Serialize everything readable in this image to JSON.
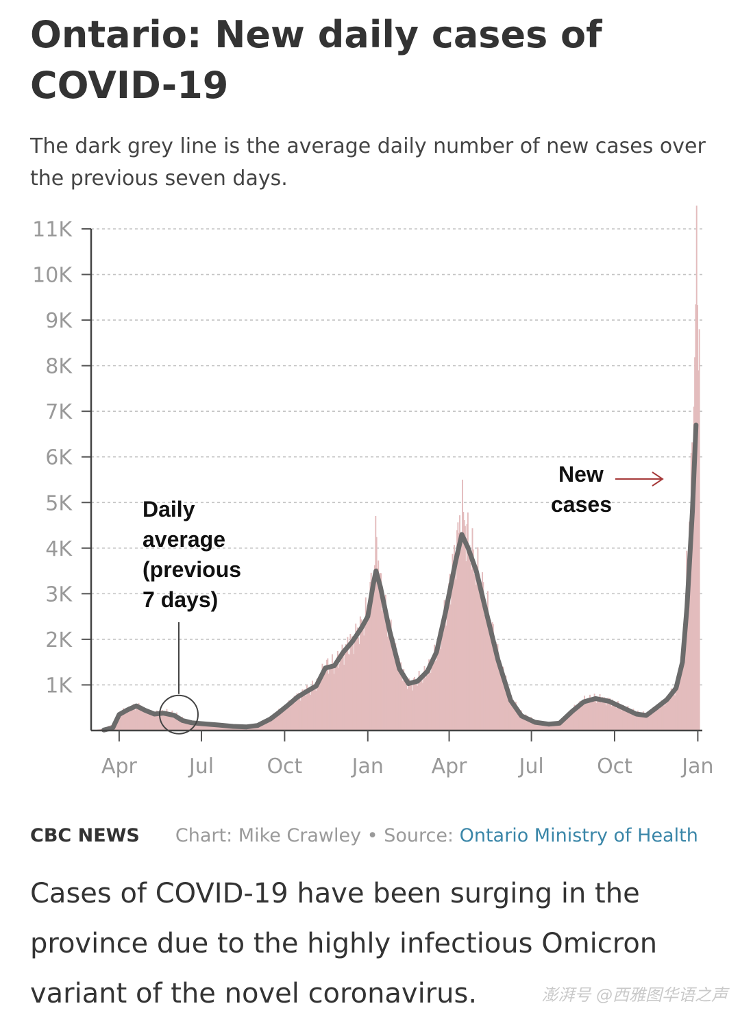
{
  "header": {
    "title": "Ontario: New daily cases of COVID-19",
    "subtitle": "The dark grey line is the average daily number of new cases over the previous seven days."
  },
  "chart_data": {
    "type": "bar",
    "overlay": "line",
    "title": "Ontario: New daily cases of COVID-19",
    "subtitle": "The dark grey line is the average daily number of new cases over the previous seven days.",
    "ylim": [
      0,
      11000
    ],
    "y_ticks": [
      1000,
      2000,
      3000,
      4000,
      5000,
      6000,
      7000,
      8000,
      9000,
      10000,
      11000
    ],
    "y_tick_labels": [
      "1K",
      "2K",
      "3K",
      "4K",
      "5K",
      "6K",
      "7K",
      "8K",
      "9K",
      "10K",
      "11K"
    ],
    "x_range": [
      "2020-03-01",
      "2022-01-06"
    ],
    "x_ticks": [
      "2020-04-01",
      "2020-07-01",
      "2020-10-01",
      "2021-01-01",
      "2021-04-01",
      "2021-07-01",
      "2021-10-01",
      "2022-01-01"
    ],
    "x_tick_labels": [
      "Apr",
      "Jul",
      "Oct",
      "Jan",
      "Apr",
      "Jul",
      "Oct",
      "Jan"
    ],
    "grid": true,
    "series": [
      {
        "name": "New cases",
        "kind": "bar",
        "color": "#e3bcbd",
        "points": [
          [
            "2020-03-01",
            0
          ],
          [
            "2020-03-15",
            40
          ],
          [
            "2020-03-25",
            150
          ],
          [
            "2020-04-03",
            400
          ],
          [
            "2020-04-12",
            470
          ],
          [
            "2020-04-20",
            560
          ],
          [
            "2020-04-30",
            440
          ],
          [
            "2020-05-10",
            370
          ],
          [
            "2020-05-20",
            410
          ],
          [
            "2020-06-01",
            370
          ],
          [
            "2020-06-10",
            250
          ],
          [
            "2020-06-20",
            190
          ],
          [
            "2020-07-01",
            160
          ],
          [
            "2020-07-20",
            130
          ],
          [
            "2020-08-05",
            110
          ],
          [
            "2020-08-20",
            100
          ],
          [
            "2020-09-01",
            120
          ],
          [
            "2020-09-15",
            260
          ],
          [
            "2020-09-25",
            420
          ],
          [
            "2020-10-05",
            580
          ],
          [
            "2020-10-15",
            760
          ],
          [
            "2020-10-25",
            880
          ],
          [
            "2020-11-05",
            1000
          ],
          [
            "2020-11-15",
            1400
          ],
          [
            "2020-11-25",
            1450
          ],
          [
            "2020-12-05",
            1750
          ],
          [
            "2020-12-15",
            2000
          ],
          [
            "2020-12-25",
            2300
          ],
          [
            "2020-12-31",
            2600
          ],
          [
            "2021-01-05",
            3200
          ],
          [
            "2021-01-10",
            4200
          ],
          [
            "2021-01-15",
            3000
          ],
          [
            "2021-01-25",
            2200
          ],
          [
            "2021-02-05",
            1400
          ],
          [
            "2021-02-15",
            1000
          ],
          [
            "2021-02-25",
            1100
          ],
          [
            "2021-03-08",
            1300
          ],
          [
            "2021-03-18",
            1750
          ],
          [
            "2021-03-28",
            2700
          ],
          [
            "2021-04-08",
            4000
          ],
          [
            "2021-04-15",
            4800
          ],
          [
            "2021-04-22",
            4100
          ],
          [
            "2021-05-01",
            3500
          ],
          [
            "2021-05-12",
            2700
          ],
          [
            "2021-05-25",
            1600
          ],
          [
            "2021-06-08",
            700
          ],
          [
            "2021-06-20",
            350
          ],
          [
            "2021-07-05",
            200
          ],
          [
            "2021-07-20",
            150
          ],
          [
            "2021-08-01",
            170
          ],
          [
            "2021-08-15",
            450
          ],
          [
            "2021-08-28",
            650
          ],
          [
            "2021-09-10",
            720
          ],
          [
            "2021-09-25",
            650
          ],
          [
            "2021-10-10",
            500
          ],
          [
            "2021-10-25",
            380
          ],
          [
            "2021-11-05",
            350
          ],
          [
            "2021-11-15",
            500
          ],
          [
            "2021-11-28",
            700
          ],
          [
            "2021-12-08",
            950
          ],
          [
            "2021-12-15",
            1600
          ],
          [
            "2021-12-20",
            3800
          ],
          [
            "2021-12-26",
            6200
          ],
          [
            "2021-12-30",
            10400
          ],
          [
            "2022-01-02",
            8500
          ]
        ]
      },
      {
        "name": "Daily average (previous 7 days)",
        "kind": "line",
        "color": "#6b6b6b",
        "points": [
          [
            "2020-03-15",
            10
          ],
          [
            "2020-03-25",
            60
          ],
          [
            "2020-04-01",
            350
          ],
          [
            "2020-04-10",
            450
          ],
          [
            "2020-04-20",
            540
          ],
          [
            "2020-04-30",
            440
          ],
          [
            "2020-05-10",
            360
          ],
          [
            "2020-05-20",
            380
          ],
          [
            "2020-06-01",
            330
          ],
          [
            "2020-06-10",
            220
          ],
          [
            "2020-06-20",
            170
          ],
          [
            "2020-07-01",
            150
          ],
          [
            "2020-07-20",
            120
          ],
          [
            "2020-08-05",
            90
          ],
          [
            "2020-08-20",
            80
          ],
          [
            "2020-09-01",
            110
          ],
          [
            "2020-09-15",
            250
          ],
          [
            "2020-09-25",
            400
          ],
          [
            "2020-10-05",
            560
          ],
          [
            "2020-10-15",
            730
          ],
          [
            "2020-10-25",
            850
          ],
          [
            "2020-11-05",
            980
          ],
          [
            "2020-11-15",
            1370
          ],
          [
            "2020-11-25",
            1420
          ],
          [
            "2020-12-05",
            1720
          ],
          [
            "2020-12-15",
            1950
          ],
          [
            "2020-12-25",
            2250
          ],
          [
            "2021-01-01",
            2500
          ],
          [
            "2021-01-07",
            3200
          ],
          [
            "2021-01-10",
            3500
          ],
          [
            "2021-01-15",
            3150
          ],
          [
            "2021-01-25",
            2200
          ],
          [
            "2021-02-05",
            1350
          ],
          [
            "2021-02-15",
            1030
          ],
          [
            "2021-02-25",
            1080
          ],
          [
            "2021-03-08",
            1300
          ],
          [
            "2021-03-18",
            1720
          ],
          [
            "2021-03-28",
            2600
          ],
          [
            "2021-04-08",
            3700
          ],
          [
            "2021-04-15",
            4300
          ],
          [
            "2021-04-22",
            4000
          ],
          [
            "2021-05-01",
            3500
          ],
          [
            "2021-05-12",
            2600
          ],
          [
            "2021-05-25",
            1550
          ],
          [
            "2021-06-08",
            660
          ],
          [
            "2021-06-20",
            320
          ],
          [
            "2021-07-05",
            180
          ],
          [
            "2021-07-20",
            140
          ],
          [
            "2021-08-01",
            160
          ],
          [
            "2021-08-15",
            420
          ],
          [
            "2021-08-28",
            630
          ],
          [
            "2021-09-10",
            700
          ],
          [
            "2021-09-25",
            640
          ],
          [
            "2021-10-10",
            500
          ],
          [
            "2021-10-25",
            360
          ],
          [
            "2021-11-05",
            330
          ],
          [
            "2021-11-15",
            480
          ],
          [
            "2021-11-28",
            680
          ],
          [
            "2021-12-08",
            930
          ],
          [
            "2021-12-15",
            1500
          ],
          [
            "2021-12-20",
            2700
          ],
          [
            "2021-12-26",
            4800
          ],
          [
            "2021-12-30",
            6700
          ]
        ]
      }
    ],
    "annotations": [
      {
        "label": "Daily average (previous 7 days)",
        "lines": [
          "Daily",
          "average",
          "(previous",
          "7 days)"
        ],
        "target": [
          "2020-06-06",
          350
        ]
      },
      {
        "label": "New cases",
        "lines": [
          "New",
          "cases"
        ],
        "target": [
          "2021-12-24",
          5500
        ]
      }
    ]
  },
  "footer": {
    "brand": "CBC NEWS",
    "credit": "Chart: Mike Crawley • Source: ",
    "source": "Ontario Ministry of Health"
  },
  "caption": "Cases of COVID-19 have been surging in the province due to the highly infectious Omicron variant of the novel coronavirus.",
  "watermark": "澎湃号 @西雅图华语之声"
}
